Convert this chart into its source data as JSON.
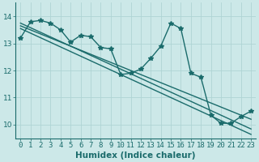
{
  "xlabel": "Humidex (Indice chaleur)",
  "bg_color": "#cce8e8",
  "grid_color": "#afd4d4",
  "line_color": "#1a6b6b",
  "x_data": [
    0,
    1,
    2,
    3,
    4,
    5,
    6,
    7,
    8,
    9,
    10,
    11,
    12,
    13,
    14,
    15,
    16,
    17,
    18,
    19,
    20,
    21,
    22,
    23
  ],
  "y_main": [
    13.2,
    13.8,
    13.85,
    13.75,
    13.5,
    13.05,
    13.3,
    13.25,
    12.85,
    12.8,
    11.85,
    11.9,
    12.05,
    12.45,
    12.9,
    13.75,
    13.55,
    11.9,
    11.75,
    10.35,
    10.05,
    10.05,
    10.3,
    10.5
  ],
  "y_trend1": [
    13.75,
    13.58,
    13.41,
    13.24,
    13.07,
    12.9,
    12.73,
    12.56,
    12.39,
    12.22,
    12.05,
    11.88,
    11.71,
    11.54,
    11.37,
    11.2,
    11.03,
    10.86,
    10.69,
    10.52,
    10.35,
    10.18,
    10.01,
    9.84
  ],
  "y_trend2": [
    13.65,
    13.5,
    13.35,
    13.2,
    13.05,
    12.9,
    12.75,
    12.6,
    12.45,
    12.3,
    12.15,
    12.0,
    11.85,
    11.7,
    11.55,
    11.4,
    11.25,
    11.1,
    10.95,
    10.8,
    10.65,
    10.5,
    10.35,
    10.2
  ],
  "y_trend3": [
    13.55,
    13.38,
    13.21,
    13.04,
    12.87,
    12.7,
    12.53,
    12.36,
    12.19,
    12.02,
    11.85,
    11.68,
    11.51,
    11.34,
    11.17,
    11.0,
    10.83,
    10.66,
    10.49,
    10.32,
    10.15,
    9.98,
    9.81,
    9.64
  ],
  "xlim": [
    -0.5,
    23.5
  ],
  "ylim": [
    9.5,
    14.5
  ],
  "yticks": [
    10,
    11,
    12,
    13,
    14
  ],
  "xtick_labels": [
    "0",
    "1",
    "2",
    "3",
    "4",
    "5",
    "6",
    "7",
    "8",
    "9",
    "10",
    "11",
    "12",
    "13",
    "14",
    "15",
    "16",
    "17",
    "18",
    "19",
    "20",
    "21",
    "22",
    "23"
  ],
  "marker": "*",
  "markersize": 4,
  "linewidth": 1.0,
  "xlabel_fontsize": 7.5,
  "tick_fontsize": 6.5
}
